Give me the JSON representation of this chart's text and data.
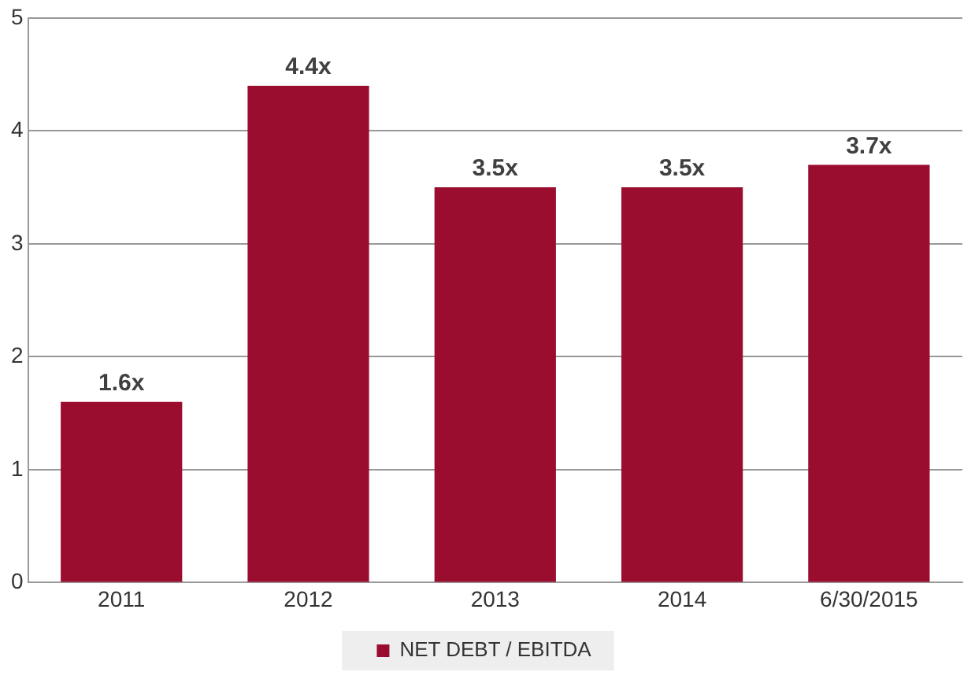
{
  "chart_data": {
    "type": "bar",
    "categories": [
      "2011",
      "2012",
      "2013",
      "2014",
      "6/30/2015"
    ],
    "series": [
      {
        "name": "NET DEBT / EBITDA",
        "color": "#9b0d2e",
        "values": [
          1.6,
          4.4,
          3.5,
          3.5,
          3.7
        ],
        "value_labels": [
          "1.6x",
          "4.4x",
          "3.5x",
          "3.5x",
          "3.7x"
        ]
      }
    ],
    "ylim": [
      0,
      5
    ],
    "yticks": [
      0,
      1,
      2,
      3,
      4,
      5
    ],
    "grid": "y",
    "legend": "bottom"
  }
}
